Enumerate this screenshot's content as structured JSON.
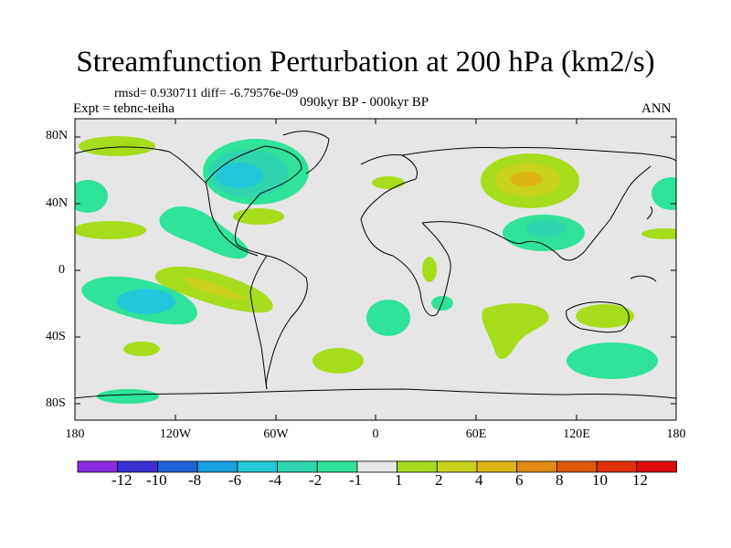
{
  "title": "Streamfunction Perturbation at 200 hPa (km2/s)",
  "rmsd_line": "rmsd= 0.930711 diff= -6.79576e-09",
  "expt_line": "Expt = tebnc-teiha",
  "period_line": "090kyr BP - 000kyr BP",
  "season": "ANN",
  "lat_labels": [
    "80N",
    "40N",
    "0",
    "40S",
    "80S"
  ],
  "lon_labels": [
    "180",
    "120W",
    "60W",
    "0",
    "60E",
    "120E",
    "180"
  ],
  "colorbar": {
    "labels": [
      "-12",
      "-10",
      "-8",
      "-6",
      "-4",
      "-2",
      "-1",
      "1",
      "2",
      "4",
      "6",
      "8",
      "10",
      "12"
    ],
    "colors": [
      "#8a2be2",
      "#3c2fd6",
      "#1f63d9",
      "#1c9fe0",
      "#21c8d9",
      "#2ed6b0",
      "#2fe39a",
      "#e6e6e6",
      "#a6dc1c",
      "#c8d21a",
      "#dcb414",
      "#e08a10",
      "#e05a0c",
      "#e0300a",
      "#e00c0c"
    ]
  },
  "map_colors": {
    "background": "#e6e6e6",
    "coast": "#000000",
    "pos1": "#a6dc1c",
    "pos2": "#c8d21a",
    "pos3": "#dcb414",
    "neg1": "#2fe39a",
    "neg2": "#2ed6b0",
    "neg3": "#21c8d9"
  }
}
